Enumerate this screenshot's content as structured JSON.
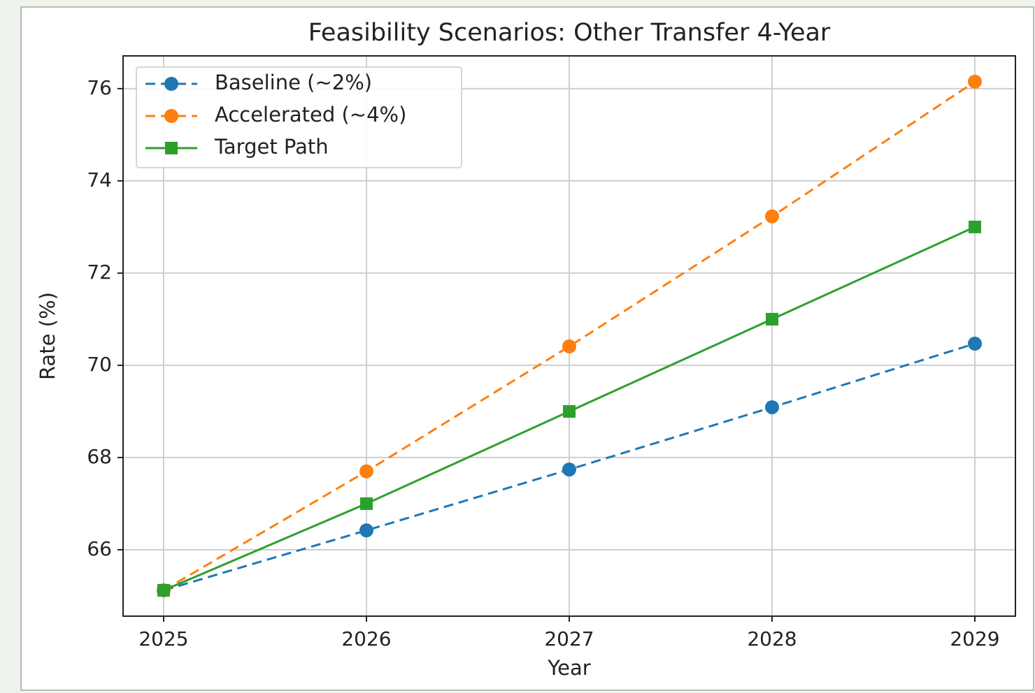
{
  "chart_data": {
    "type": "line",
    "title": "Feasibility Scenarios: Other Transfer 4-Year",
    "xlabel": "Year",
    "ylabel": "Rate (%)",
    "x": [
      2025,
      2026,
      2027,
      2028,
      2029
    ],
    "xlim": [
      2024.8,
      2029.2
    ],
    "xticks": [
      2025,
      2026,
      2027,
      2028,
      2029
    ],
    "ylim": [
      64.56,
      76.71
    ],
    "yticks": [
      66,
      68,
      70,
      72,
      74,
      76
    ],
    "grid": true,
    "legend": "upper left",
    "series": [
      {
        "name": "Baseline (~2%)",
        "color": "#1f77b4",
        "linestyle": "dashed",
        "marker": "circle",
        "values": [
          65.12,
          66.42,
          67.74,
          69.09,
          70.47
        ]
      },
      {
        "name": "Accelerated (~4%)",
        "color": "#ff7f0e",
        "linestyle": "dashed",
        "marker": "circle",
        "values": [
          65.12,
          67.7,
          70.41,
          73.23,
          76.15
        ]
      },
      {
        "name": "Target Path",
        "color": "#2ca02c",
        "linestyle": "solid",
        "marker": "square",
        "values": [
          65.12,
          67.0,
          69.0,
          71.0,
          73.0
        ]
      }
    ]
  }
}
